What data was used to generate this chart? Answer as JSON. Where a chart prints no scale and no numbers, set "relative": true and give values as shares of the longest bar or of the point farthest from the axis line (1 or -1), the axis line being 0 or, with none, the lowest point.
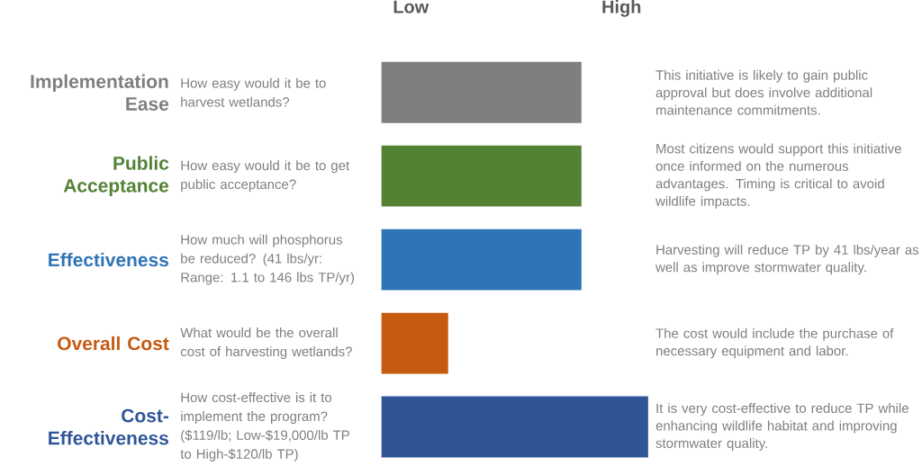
{
  "chart_data": {
    "type": "bar",
    "orientation": "horizontal",
    "relative": true,
    "categories": [
      "Implementation Ease",
      "Public Acceptance",
      "Effectiveness",
      "Overall Cost",
      "Cost-Effectiveness"
    ],
    "values": [
      0.75,
      0.75,
      0.75,
      0.25,
      1
    ],
    "colors": [
      "#7f7f7f",
      "#548235",
      "#2e75b6",
      "#c55a11",
      "#2f5597"
    ],
    "annotations": [
      "How easy would it be to harvest wetlands?",
      "How easy would it be to get public acceptance?",
      "How much will phosphorus be reduced? (41 lbs/yr:  Range:  1.1 to 146 lbs TP/yr)",
      "What would be the overall cost of harvesting wetlands?",
      "How cost-effective is it to implement the program? ($119/lb; Low-$19,000/lb TP to High-$120/lb TP)",
      "This initiative is likely to gain public approval but does involve additional maintenance commitments.",
      "Most citizens would support this initiative once informed on the numerous advantages.  Timing is critical to avoid wildlife impacts.",
      "Harvesting will reduce TP by 41 lbs/year as well as improve stormwater quality.",
      "The cost would include the purchase of necessary equipment and labor.",
      "It is very cost-effective to reduce TP while enhancing wildlife habitat and improving stormwater quality.",
      "Low",
      "High"
    ]
  }
}
